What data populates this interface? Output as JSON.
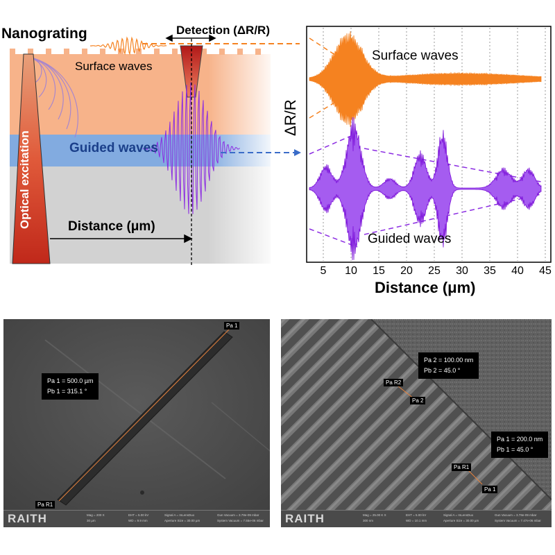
{
  "figure": {
    "top_schematic": {
      "nanograting_label": "Nanograting",
      "detection_label": "Detection (ΔR/R)",
      "surface_waves_label": "Surface waves",
      "guided_waves_label": "Guided waves",
      "optical_excitation_label": "Optical excitation",
      "distance_label": "Distance (μm)"
    },
    "colors": {
      "surface_layer": "#f7b38a",
      "guided_layer": "#7fa8dc",
      "substrate": "#cfcfcf",
      "surface_signal": "#f58220",
      "guided_signal": "#8b2be2",
      "excitation_beam": "#c0392b"
    }
  },
  "chart_data": {
    "type": "line",
    "ylabel": "ΔR/R",
    "xlabel": "Distance (μm)",
    "xlim": [
      2,
      46
    ],
    "x_ticks": [
      5,
      10,
      15,
      20,
      25,
      30,
      35,
      40,
      45
    ],
    "grid": "vertical dotted",
    "annotations": [
      "Surface waves",
      "Guided waves"
    ],
    "series": [
      {
        "name": "Surface waves",
        "color": "#f58220",
        "packets": [
          {
            "center": 9.5,
            "amplitude": 1.0,
            "width": 3.5
          },
          {
            "center": 30.0,
            "amplitude": 0.12,
            "width": 14.0
          }
        ]
      },
      {
        "name": "Guided waves",
        "color": "#8b2be2",
        "packets": [
          {
            "center": 5.5,
            "amplitude": 0.35,
            "width": 1.5
          },
          {
            "center": 10.5,
            "amplitude": 1.0,
            "width": 1.8
          },
          {
            "center": 17.0,
            "amplitude": 0.15,
            "width": 1.5
          },
          {
            "center": 22.5,
            "amplitude": 0.55,
            "width": 1.5
          },
          {
            "center": 26.5,
            "amplitude": 0.85,
            "width": 1.2
          },
          {
            "center": 37.5,
            "amplitude": 0.3,
            "width": 2.0
          },
          {
            "center": 42.0,
            "amplitude": 0.3,
            "width": 1.5
          }
        ]
      }
    ]
  },
  "sem_left": {
    "logo": "RAITH",
    "measure_box": [
      "Pa 1 = 500.0 µm",
      "Pb 1 = 315.1 °"
    ],
    "tag_p1": "Pa 1",
    "tag_r1": "Pa R1",
    "meta": {
      "mag": "Mag = 200 X",
      "scale": "30 µm",
      "eht": "EHT = 5.00 kV",
      "wd": "WD = 9.9 mm",
      "signal": "Signal A = InLensDuo",
      "aperture": "Aperture Size = 30.00 µm",
      "gun": "Gun Vacuum = 3.78e-09 mbar",
      "system": "System Vacuum = 7.55e-06 mbar"
    }
  },
  "sem_right": {
    "logo": "RAITH",
    "box_top": [
      "Pa 2 = 100.00 nm",
      "Pb 2 = 45.0 °"
    ],
    "box_bottom": [
      "Pa 1 = 200.0 nm",
      "Pb 1 = 45.0 °"
    ],
    "tag_r2": "Pa R2",
    "tag_2": "Pa 2",
    "tag_r1": "Pa R1",
    "tag_1": "Pa 1",
    "meta": {
      "mag": "Mag = 25.00 K X",
      "scale": "300 nm",
      "eht": "EHT = 5.00 kV",
      "wd": "WD = 10.1 mm",
      "signal": "Signal A = InLensDuo",
      "aperture": "Aperture Size = 30.00 µm",
      "gun": "Gun Vacuum = 3.78e-09 mbar",
      "system": "System Vacuum = 7.47e-06 mbar"
    }
  }
}
